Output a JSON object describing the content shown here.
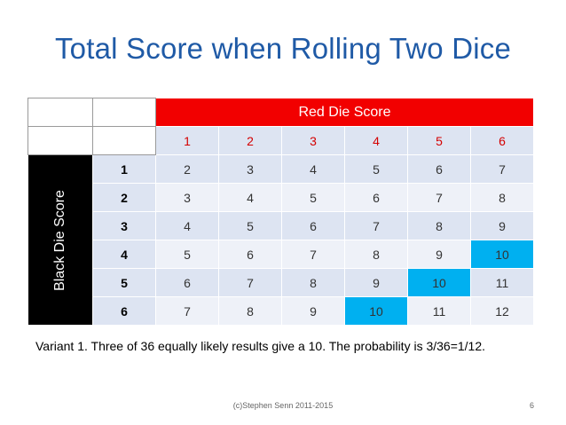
{
  "slide": {
    "title": "Total Score when Rolling Two Dice",
    "red_header": "Red Die Score",
    "black_header": "Black Die Score",
    "column_headers": [
      "1",
      "2",
      "3",
      "4",
      "5",
      "6"
    ],
    "row_headers": [
      "1",
      "2",
      "3",
      "4",
      "5",
      "6"
    ],
    "rows": [
      [
        "2",
        "3",
        "4",
        "5",
        "6",
        "7"
      ],
      [
        "3",
        "4",
        "5",
        "6",
        "7",
        "8"
      ],
      [
        "4",
        "5",
        "6",
        "7",
        "8",
        "9"
      ],
      [
        "5",
        "6",
        "7",
        "8",
        "9",
        "10"
      ],
      [
        "6",
        "7",
        "8",
        "9",
        "10",
        "11"
      ],
      [
        "7",
        "8",
        "9",
        "10",
        "11",
        "12"
      ]
    ],
    "highlight_value": "10",
    "highlight_color": "#00b0f0",
    "note": "Variant 1. Three of 36 equally likely results give a 10. The probability is 3/36=1/12.",
    "footer": "(c)Stephen Senn 2011-2015",
    "page_number": "6"
  }
}
